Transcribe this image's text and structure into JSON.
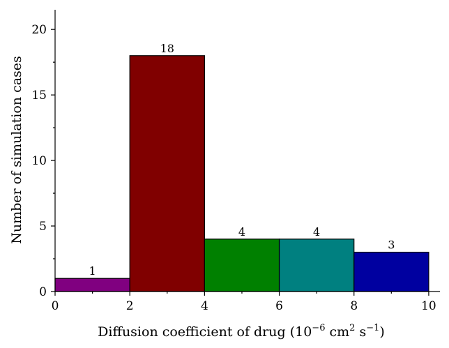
{
  "chart_data": {
    "type": "bar",
    "bins": [
      {
        "x0": 0,
        "x1": 2,
        "value": 1,
        "label": "1",
        "color": "#800080"
      },
      {
        "x0": 2,
        "x1": 4,
        "value": 18,
        "label": "18",
        "color": "#800000"
      },
      {
        "x0": 4,
        "x1": 6,
        "value": 4,
        "label": "4",
        "color": "#008000"
      },
      {
        "x0": 6,
        "x1": 8,
        "value": 4,
        "label": "4",
        "color": "#008080"
      },
      {
        "x0": 8,
        "x1": 10,
        "value": 3,
        "label": "3",
        "color": "#0000a0"
      }
    ],
    "xlabel": {
      "prefix": "Diffusion coefficient of drug (10",
      "exp1": "−6",
      "mid": " cm",
      "exp2": "2",
      "mid2": " s",
      "exp3": "−1",
      "suffix": ")"
    },
    "ylabel": "Number of simulation cases",
    "xlim": [
      0,
      10.3
    ],
    "ylim": [
      0,
      21.5
    ],
    "xticks": [
      "0",
      "2",
      "4",
      "6",
      "8",
      "10"
    ],
    "yticks": [
      "0",
      "5",
      "10",
      "15",
      "20"
    ],
    "grid": false,
    "legend": "none"
  }
}
